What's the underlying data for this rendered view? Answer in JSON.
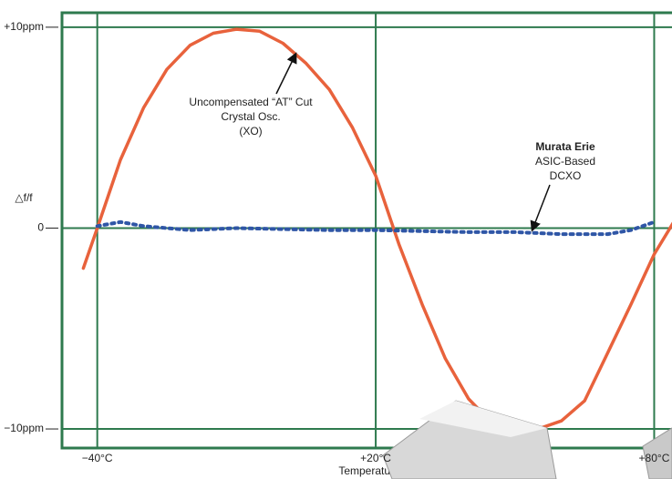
{
  "chart_data": {
    "type": "line",
    "y_label": "△f/f",
    "x_label": "Temperature",
    "xlim": [
      -47.6,
      86
    ],
    "ylim": [
      -10.95,
      10.72
    ],
    "xticks": [
      {
        "value": -40,
        "label": "−40°C"
      },
      {
        "value": 20,
        "label": "+20°C"
      },
      {
        "value": 80,
        "label": "+80°C"
      }
    ],
    "yticks": [
      {
        "value": 10,
        "label": "+10ppm"
      },
      0,
      {
        "value": -10,
        "label": "−10ppm"
      }
    ],
    "grid": true,
    "series": [
      {
        "color": "#e8623c",
        "style": "solid",
        "x": [
          -43,
          -40,
          -35,
          -30,
          -25,
          -20,
          -15,
          -10,
          -5,
          0,
          5,
          10,
          15,
          20,
          25,
          30,
          35,
          40,
          45,
          50,
          55,
          60,
          65,
          70,
          75,
          80,
          85
        ],
        "values": [
          -2.0,
          0,
          3.4,
          6.0,
          7.9,
          9.1,
          9.7,
          9.9,
          9.8,
          9.2,
          8.2,
          6.9,
          5.0,
          2.6,
          -0.8,
          -3.8,
          -6.5,
          -8.5,
          -9.7,
          -10.0,
          -10.0,
          -9.6,
          -8.6,
          -6.2,
          -3.8,
          -1.3,
          0.6
        ]
      },
      {
        "color": "#2f56a6",
        "style": "dotted",
        "x": [
          -40,
          -35,
          -30,
          -25,
          -20,
          -10,
          0,
          10,
          20,
          30,
          40,
          50,
          60,
          70,
          75,
          80
        ],
        "values": [
          0.1,
          0.3,
          0.1,
          0.0,
          -0.1,
          0.0,
          -0.05,
          -0.1,
          -0.1,
          -0.15,
          -0.2,
          -0.2,
          -0.3,
          -0.3,
          -0.1,
          0.3
        ]
      }
    ],
    "annotations": [
      {
        "lines": [
          "Uncompensated “AT” Cut",
          "Crystal Osc.",
          "(XO)"
        ]
      },
      {
        "lines": [
          "Murata Erie",
          "ASIC-Based",
          "DCXO"
        ]
      }
    ]
  }
}
